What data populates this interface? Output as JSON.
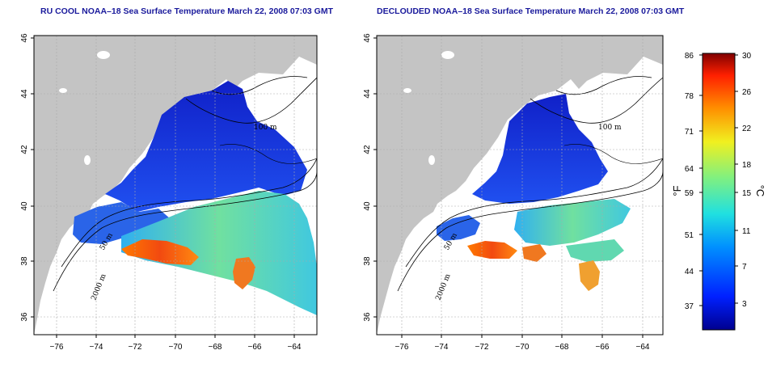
{
  "maps": [
    {
      "title": "RU COOL NOAA–18 Sea Surface Temperature March 22, 2008 07:03 GMT",
      "product": "ru-cool"
    },
    {
      "title": "DECLOUDED NOAA–18 Sea Surface Temperature March 22, 2008 07:03 GMT",
      "product": "declouded"
    }
  ],
  "axes": {
    "lon_ticks": [
      "−76",
      "−74",
      "−72",
      "−70",
      "−68",
      "−66",
      "−64"
    ],
    "lat_ticks": [
      "36",
      "38",
      "40",
      "42",
      "44",
      "46"
    ]
  },
  "contour_labels": [
    "100 m",
    "2000 m",
    "50 m"
  ],
  "colorbar": {
    "fahrenheit_ticks": [
      "86",
      "78",
      "71",
      "64",
      "59",
      "51",
      "44",
      "37"
    ],
    "celsius_ticks": [
      "30",
      "26",
      "22",
      "18",
      "15",
      "11",
      "7",
      "3"
    ],
    "fahrenheit_unit": "°F",
    "celsius_unit": "°C"
  },
  "colors": {
    "land": "#c4c4c4",
    "title": "#1a1a9c",
    "cold": "#1a2fd8",
    "warm": "#e8541c"
  }
}
